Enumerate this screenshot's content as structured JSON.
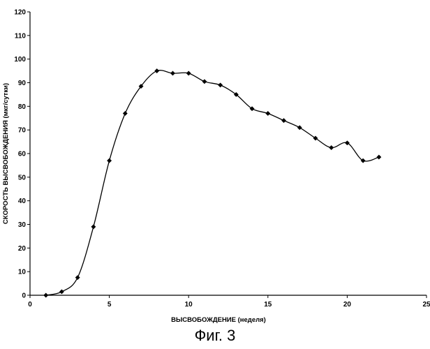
{
  "chart_data": {
    "type": "line",
    "title": "",
    "xlabel": "ВЫСВОБОЖДЕНИЕ (неделя)",
    "ylabel": "СКОРОСТЬ ВЫСВОБОЖДЕНИЯ (мкг/сутки)",
    "xlim": [
      0,
      25
    ],
    "ylim": [
      0,
      120
    ],
    "xticks": [
      0,
      5,
      10,
      15,
      20,
      25
    ],
    "yticks": [
      0,
      10,
      20,
      30,
      40,
      50,
      60,
      70,
      80,
      90,
      100,
      110,
      120
    ],
    "grid": false,
    "legend": "none",
    "series": [
      {
        "x": [
          1,
          2,
          3,
          4,
          5,
          6,
          7,
          8,
          9,
          10,
          11,
          12,
          13,
          14,
          15,
          16,
          17,
          18,
          19,
          20,
          21,
          22
        ],
        "y": [
          0,
          1.5,
          7.5,
          29,
          57,
          77,
          88.5,
          95,
          94,
          94,
          90.5,
          89,
          85,
          79,
          77,
          74,
          71,
          66.5,
          62.5,
          64.5,
          57,
          58.5
        ],
        "color": "#000000",
        "marker": "diamond"
      }
    ]
  },
  "caption": "Фиг. 3"
}
